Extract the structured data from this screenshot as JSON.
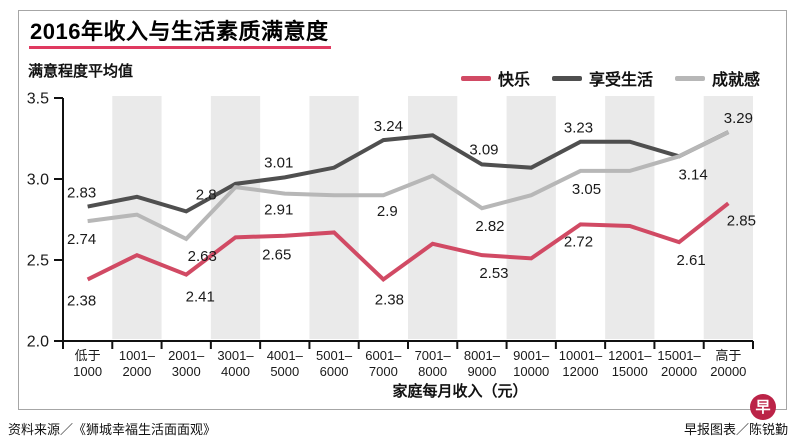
{
  "title": "2016年收入与生活素质满意度",
  "subtitle": "满意程度平均值",
  "colors": {
    "happiness": "#d14a64",
    "enjoy_life": "#4f4f4f",
    "achievement": "#b7b7b7",
    "title_rule": "#e03a60",
    "stripe": "#eaeaea",
    "axis": "#111111",
    "logo_red": "#bb2347"
  },
  "legend": [
    {
      "key": "happiness",
      "label": "快乐",
      "color": "#d14a64"
    },
    {
      "key": "enjoy-life",
      "label": "享受生活",
      "color": "#4f4f4f"
    },
    {
      "key": "achievement",
      "label": "成就感",
      "color": "#b7b7b7"
    }
  ],
  "footer": {
    "source": "资料来源／《狮城幸福生活面面观》",
    "credit": "早报图表／陈锐勤",
    "logo_char": "早"
  },
  "chart_data": {
    "type": "line",
    "title": "2016年收入与生活素质满意度",
    "ylabel": "满意程度平均值",
    "xlabel": "家庭每月收入（元）",
    "ylim": [
      2.0,
      3.5
    ],
    "yticks": [
      "3.5",
      "3.0",
      "2.5",
      "2.0"
    ],
    "grid": false,
    "legend_position": "top-right",
    "stripe_indices": [
      1,
      3,
      5,
      7,
      9,
      11,
      13
    ],
    "categories": [
      [
        "低于",
        "1000"
      ],
      [
        "1001–",
        "2000"
      ],
      [
        "2001–",
        "3000"
      ],
      [
        "3001–",
        "4000"
      ],
      [
        "4001–",
        "5000"
      ],
      [
        "5001–",
        "6000"
      ],
      [
        "6001–",
        "7000"
      ],
      [
        "7001–",
        "8000"
      ],
      [
        "8001–",
        "9000"
      ],
      [
        "9001–",
        "10000"
      ],
      [
        "10001–",
        "12000"
      ],
      [
        "12001–",
        "15000"
      ],
      [
        "15001–",
        "20000"
      ],
      [
        "高于",
        "20000"
      ]
    ],
    "series": [
      {
        "name": "享受生活",
        "key": "series-enjoy-life",
        "color": "#4f4f4f",
        "values": [
          2.83,
          2.89,
          2.8,
          2.97,
          3.01,
          3.07,
          3.24,
          3.27,
          3.09,
          3.07,
          3.23,
          3.23,
          3.14,
          3.29
        ],
        "labels": [
          {
            "i": 0,
            "text": "2.83",
            "dx": -6,
            "dy": -9
          },
          {
            "i": 2,
            "text": "2.8",
            "dx": 20,
            "dy": -12
          },
          {
            "i": 4,
            "text": "3.01",
            "dx": -6,
            "dy": -10
          },
          {
            "i": 6,
            "text": "3.24",
            "dx": 5,
            "dy": -9
          },
          {
            "i": 8,
            "text": "3.09",
            "dx": 2,
            "dy": -10
          },
          {
            "i": 10,
            "text": "3.23",
            "dx": -2,
            "dy": -9
          },
          {
            "i": 12,
            "text": "3.14",
            "dx": 14,
            "dy": 23
          },
          {
            "i": 13,
            "text": "3.29",
            "dx": 10,
            "dy": -9
          }
        ]
      },
      {
        "name": "成就感",
        "key": "series-achievement",
        "color": "#b7b7b7",
        "values": [
          2.74,
          2.78,
          2.63,
          2.95,
          2.91,
          2.9,
          2.9,
          3.02,
          2.82,
          2.9,
          3.05,
          3.05,
          3.14,
          3.29
        ],
        "labels": [
          {
            "i": 0,
            "text": "2.74",
            "dx": -6,
            "dy": 23
          },
          {
            "i": 2,
            "text": "2.63",
            "dx": 16,
            "dy": 22
          },
          {
            "i": 4,
            "text": "2.91",
            "dx": -6,
            "dy": 21
          },
          {
            "i": 6,
            "text": "2.9",
            "dx": 4,
            "dy": 21
          },
          {
            "i": 8,
            "text": "2.82",
            "dx": 8,
            "dy": 23
          },
          {
            "i": 10,
            "text": "3.05",
            "dx": 6,
            "dy": 23
          }
        ]
      },
      {
        "name": "快乐",
        "key": "series-happiness",
        "color": "#d14a64",
        "values": [
          2.38,
          2.53,
          2.41,
          2.64,
          2.65,
          2.67,
          2.38,
          2.6,
          2.53,
          2.51,
          2.72,
          2.71,
          2.61,
          2.85
        ],
        "labels": [
          {
            "i": 0,
            "text": "2.38",
            "dx": -6,
            "dy": 26
          },
          {
            "i": 2,
            "text": "2.41",
            "dx": 14,
            "dy": 27
          },
          {
            "i": 4,
            "text": "2.65",
            "dx": -8,
            "dy": 24
          },
          {
            "i": 6,
            "text": "2.38",
            "dx": 6,
            "dy": 25
          },
          {
            "i": 8,
            "text": "2.53",
            "dx": 12,
            "dy": 23
          },
          {
            "i": 10,
            "text": "2.72",
            "dx": -2,
            "dy": 22
          },
          {
            "i": 12,
            "text": "2.61",
            "dx": 12,
            "dy": 23
          },
          {
            "i": 13,
            "text": "2.85",
            "dx": 13,
            "dy": 22
          }
        ]
      }
    ]
  }
}
